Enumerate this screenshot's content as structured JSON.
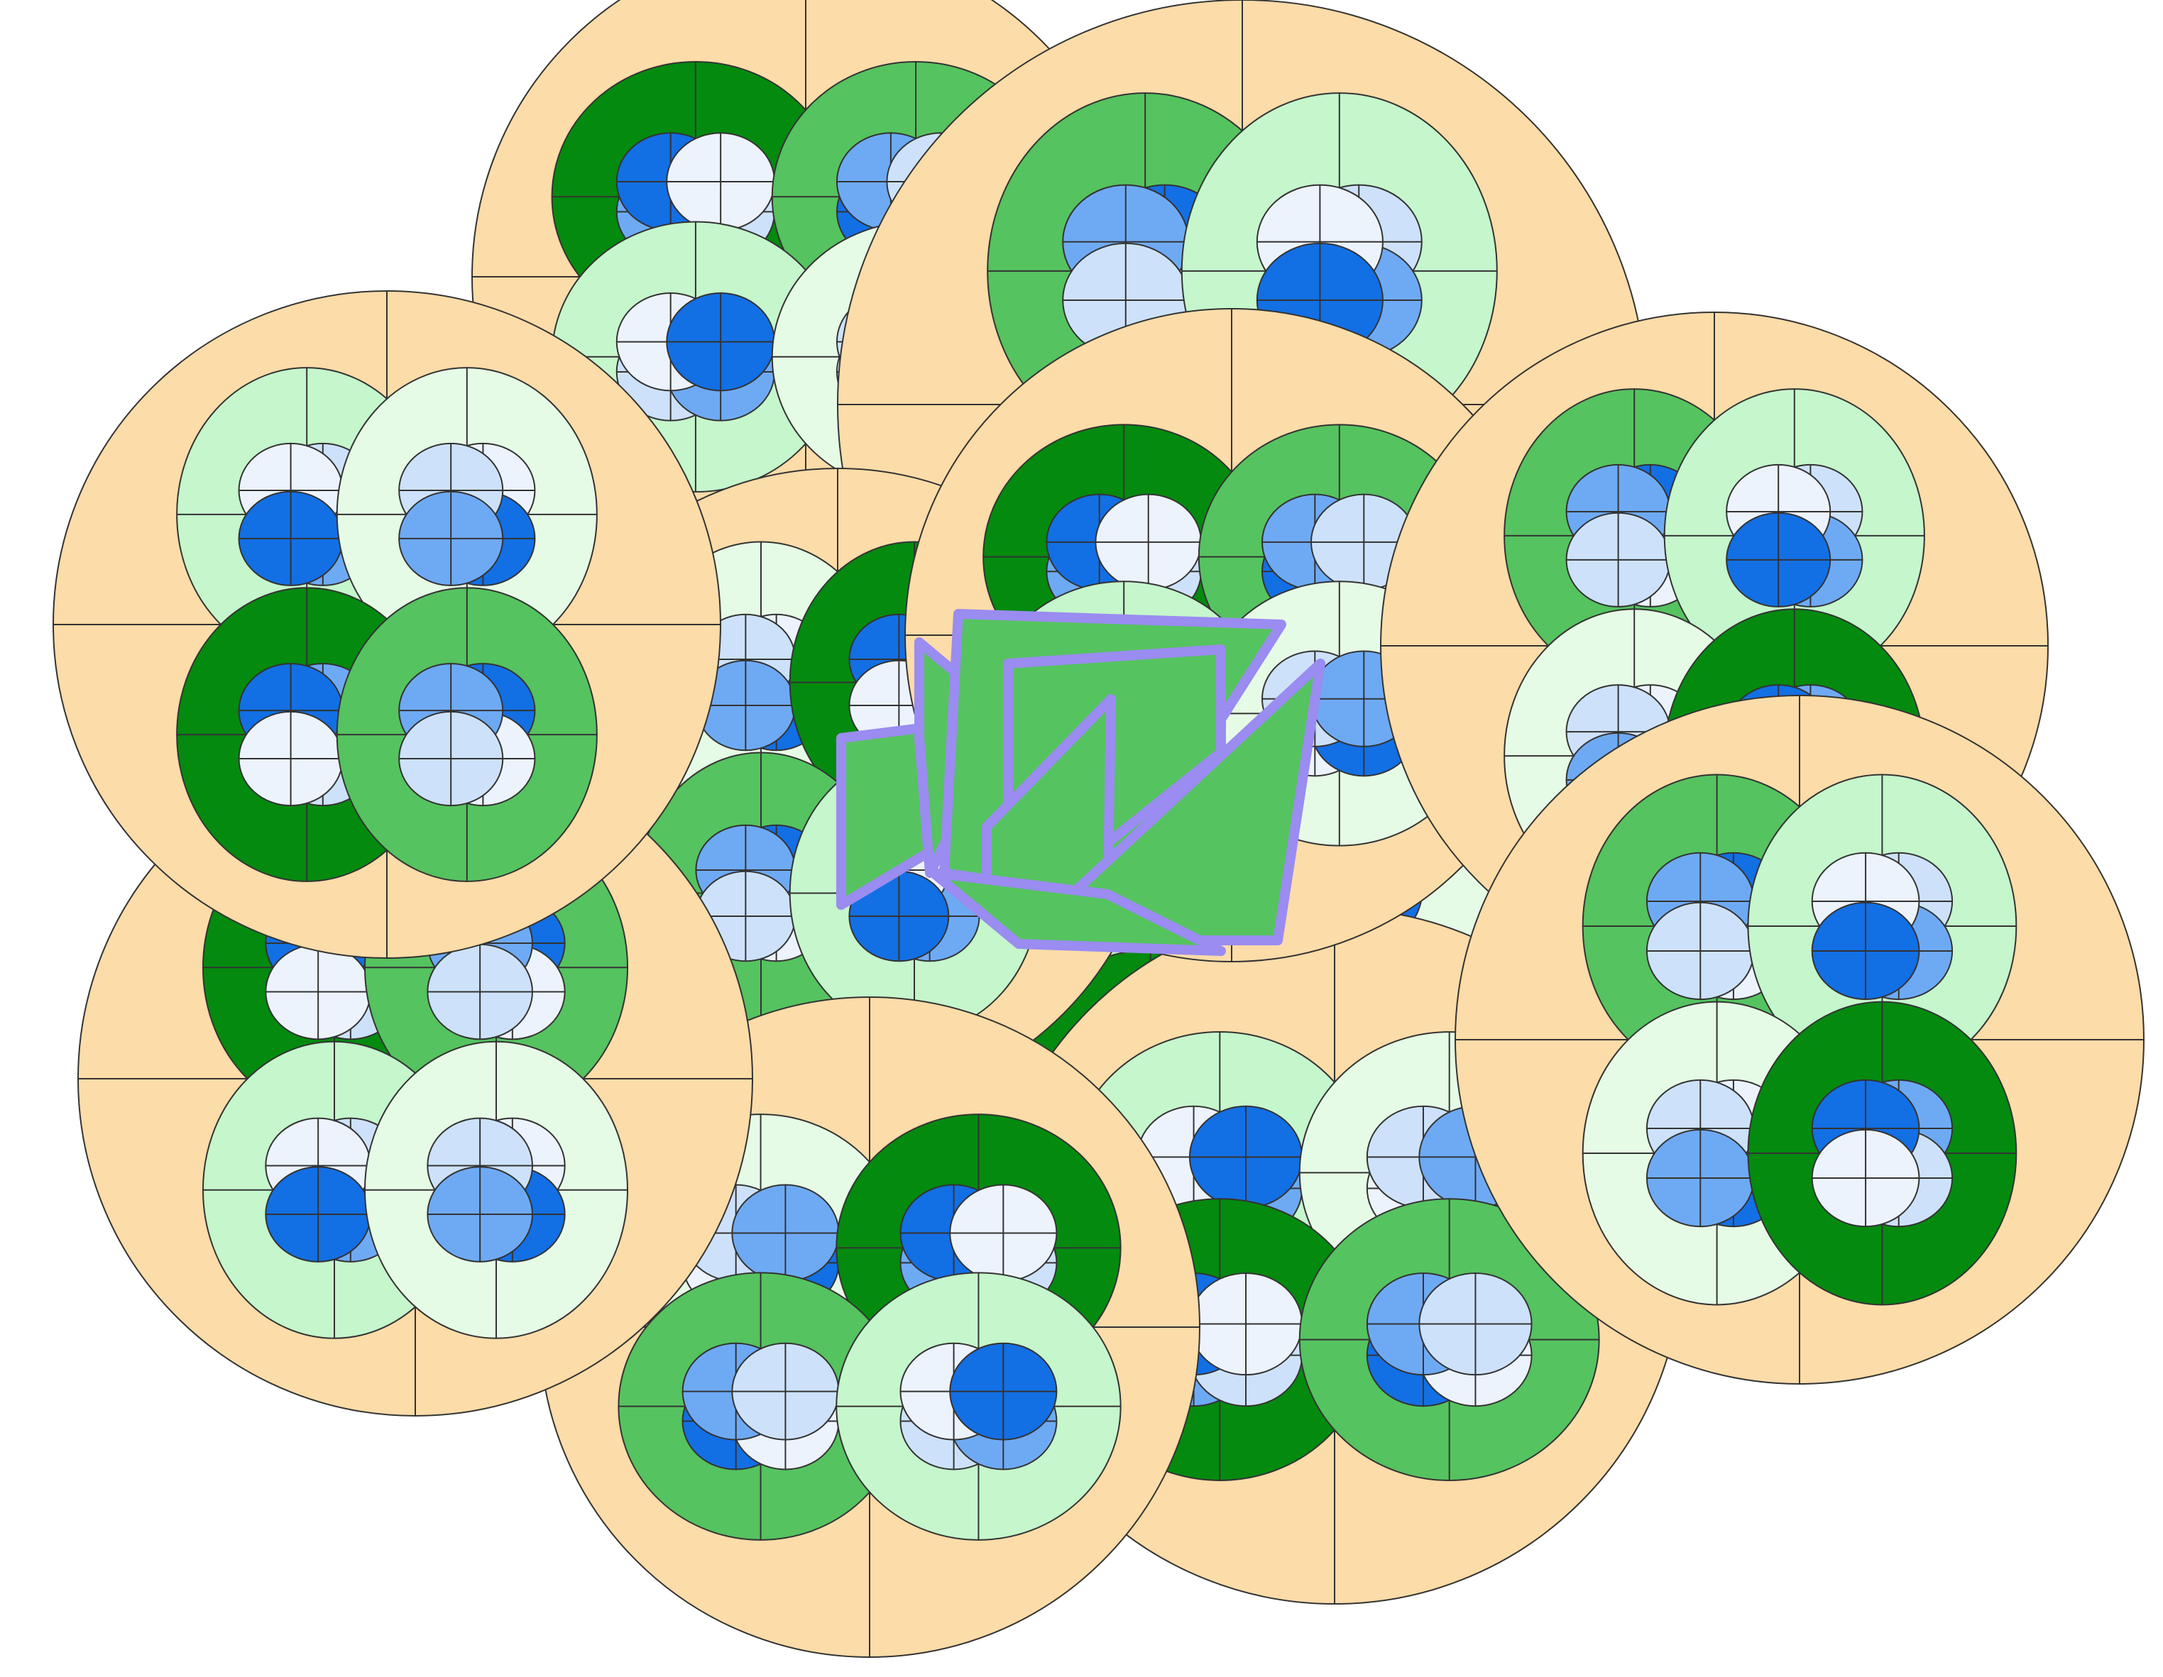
{
  "palette": {
    "background": "#ffffff",
    "peach": "#fcdca8",
    "dark_green": "#048a0f",
    "mid_green": "#55c35f",
    "light_green": "#c5f6cc",
    "pale_green": "#e6fbe6",
    "dark_blue": "#136fe4",
    "mid_blue": "#6eaaf4",
    "light_blue": "#cde2fa",
    "pale_blue": "#ecf3fd",
    "stroke": "#333333",
    "purple": "#9a8cf0"
  },
  "clusters": [
    {
      "id": "top-left",
      "variant": "a"
    },
    {
      "id": "top-center",
      "variant": "b"
    },
    {
      "id": "upper-left",
      "variant": "c"
    },
    {
      "id": "center-left",
      "variant": "d"
    },
    {
      "id": "center-right",
      "variant": "e"
    },
    {
      "id": "upper-right",
      "variant": "f"
    },
    {
      "id": "lower-left",
      "variant": "g"
    },
    {
      "id": "bottom-center-left",
      "variant": "h"
    },
    {
      "id": "bottom-center-right",
      "variant": "i"
    },
    {
      "id": "right",
      "variant": "j"
    }
  ],
  "center_shape": {
    "fill": "#55c35f",
    "stroke": "#9a8cf0",
    "name": "folded-green-polygons"
  }
}
